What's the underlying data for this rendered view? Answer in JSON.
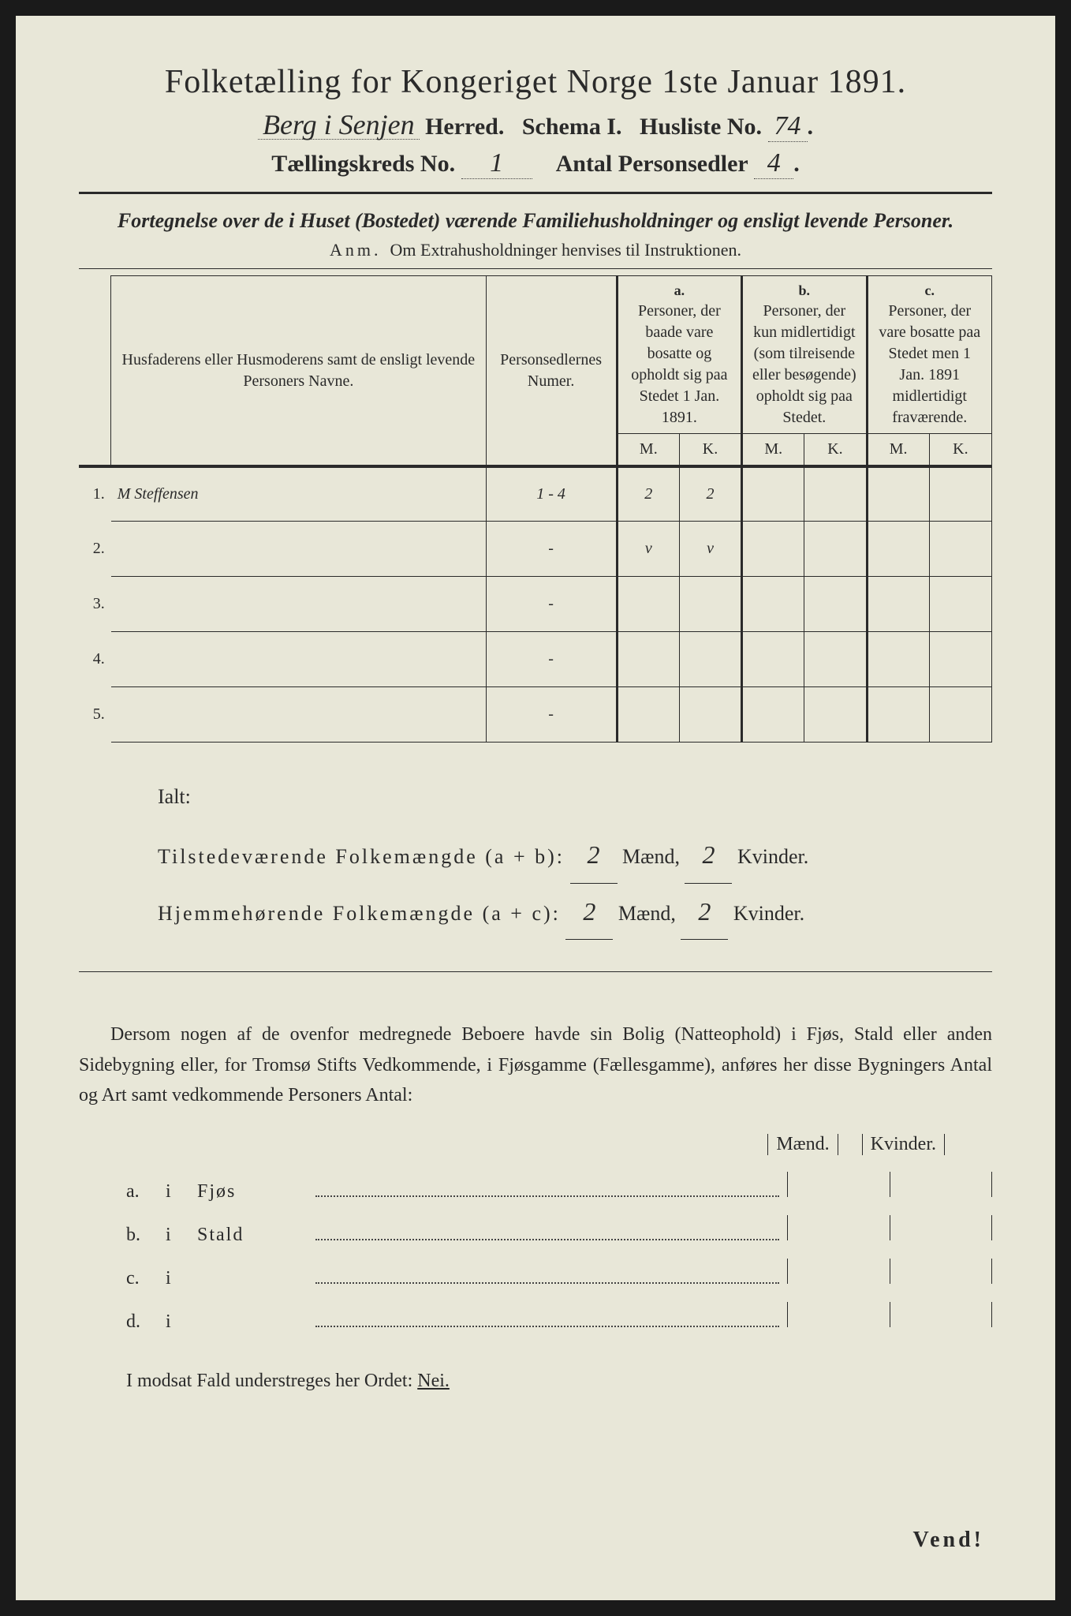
{
  "title": "Folketælling for Kongeriget Norge 1ste Januar 1891.",
  "herred_value": "Berg i Senjen",
  "herred_label": "Herred.",
  "schema_label": "Schema I.",
  "husliste_label": "Husliste No.",
  "husliste_no": "74",
  "kreds_label": "Tællingskreds No.",
  "kreds_no": "1",
  "antal_label": "Antal Personsedler",
  "antal_val": "4",
  "subtitle": "Fortegnelse over de i Huset (Bostedet) værende Familiehusholdninger og ensligt levende Personer.",
  "anm_tag": "Anm.",
  "anm_text": "Om Extrahusholdninger henvises til Instruktionen.",
  "col_names": "Husfaderens eller Husmoderens samt de ensligt levende Personers Navne.",
  "col_num": "Personsedlernes Numer.",
  "col_a_tag": "a.",
  "col_a": "Personer, der baade vare bosatte og opholdt sig paa Stedet 1 Jan. 1891.",
  "col_b_tag": "b.",
  "col_b": "Personer, der kun midlertidigt (som tilreisende eller besøgende) opholdt sig paa Stedet.",
  "col_c_tag": "c.",
  "col_c": "Personer, der vare bosatte paa Stedet men 1 Jan. 1891 midlertidigt fraværende.",
  "M": "M.",
  "K": "K.",
  "rows": [
    {
      "n": "1.",
      "name": "M Steffensen",
      "num": "1 - 4",
      "aM": "2",
      "aK": "2",
      "bM": "",
      "bK": "",
      "cM": "",
      "cK": ""
    },
    {
      "n": "2.",
      "name": "",
      "num": "-",
      "aM": "v",
      "aK": "v",
      "bM": "",
      "bK": "",
      "cM": "",
      "cK": ""
    },
    {
      "n": "3.",
      "name": "",
      "num": "-",
      "aM": "",
      "aK": "",
      "bM": "",
      "bK": "",
      "cM": "",
      "cK": ""
    },
    {
      "n": "4.",
      "name": "",
      "num": "-",
      "aM": "",
      "aK": "",
      "bM": "",
      "bK": "",
      "cM": "",
      "cK": ""
    },
    {
      "n": "5.",
      "name": "",
      "num": "-",
      "aM": "",
      "aK": "",
      "bM": "",
      "bK": "",
      "cM": "",
      "cK": ""
    }
  ],
  "ialt": "Ialt:",
  "tilstede_label": "Tilstedeværende Folkemængde (a + b):",
  "hjemme_label": "Hjemmehørende Folkemængde (a + c):",
  "tilstede_m": "2",
  "tilstede_k": "2",
  "hjemme_m": "2",
  "hjemme_k": "2",
  "maend": "Mænd,",
  "kvinder": "Kvinder.",
  "paragraph": "Dersom nogen af de ovenfor medregnede Beboere havde sin Bolig (Natteophold) i Fjøs, Stald eller anden Sidebygning eller, for Tromsø Stifts Vedkommende, i Fjøsgamme (Fællesgamme), anføres her disse Bygningers Antal og Art samt vedkommende Personers Antal:",
  "mk_m": "Mænd.",
  "mk_k": "Kvinder.",
  "b_rows": [
    {
      "tag": "a.",
      "i": "i",
      "name": "Fjøs"
    },
    {
      "tag": "b.",
      "i": "i",
      "name": "Stald"
    },
    {
      "tag": "c.",
      "i": "i",
      "name": ""
    },
    {
      "tag": "d.",
      "i": "i",
      "name": ""
    }
  ],
  "final_pre": "I modsat Fald understreges her Ordet:",
  "nei": "Nei.",
  "vend": "Vend!",
  "colors": {
    "paper": "#e8e7d8",
    "ink": "#2a2a2a",
    "bg": "#1a1a1a"
  }
}
